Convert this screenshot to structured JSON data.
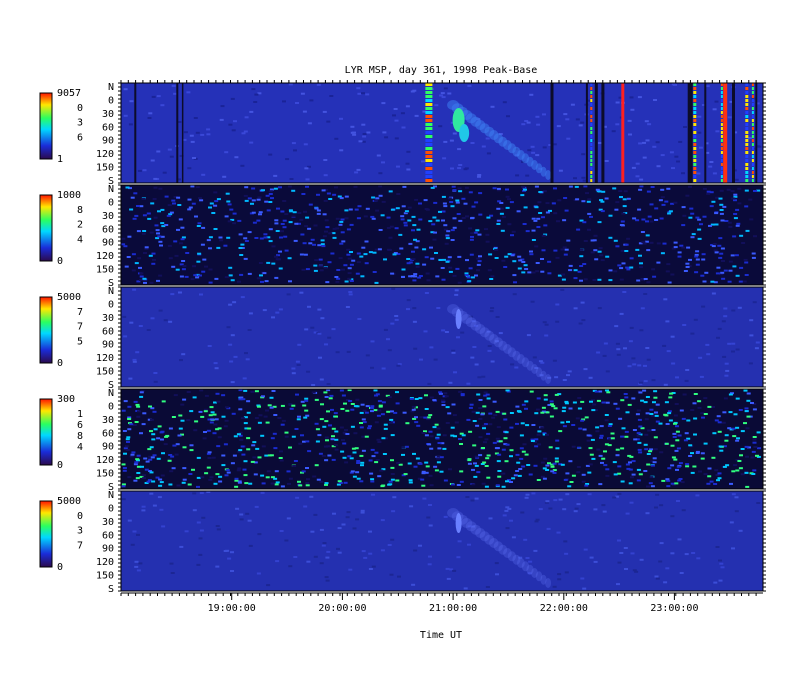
{
  "chart_data": {
    "type": "heatmap",
    "title": "LYR MSP, day 361, 1998 Peak-Base",
    "xlabel": "Time UT",
    "x_ticks": [
      "19:00:00",
      "20:00:00",
      "21:00:00",
      "22:00:00",
      "23:00:00"
    ],
    "x_range_hours": [
      18.0,
      23.8
    ],
    "y_tick_labels": [
      "N",
      "0",
      "30",
      "60",
      "90",
      "120",
      "150",
      "S"
    ],
    "panels": [
      {
        "colorbar_max": "9057",
        "colorbar_labels": [
          "0",
          "3",
          "6"
        ],
        "colorbar_min": "1"
      },
      {
        "colorbar_max": "1000",
        "colorbar_labels": [
          "8",
          "2",
          "4"
        ],
        "colorbar_min": "0"
      },
      {
        "colorbar_max": "5000",
        "colorbar_labels": [
          "7",
          "7",
          "5"
        ],
        "colorbar_min": "0"
      },
      {
        "colorbar_max": "300",
        "colorbar_labels": [
          "1",
          "6",
          "8",
          "4"
        ],
        "colorbar_min": "0"
      },
      {
        "colorbar_max": "5000",
        "colorbar_labels": [
          "0",
          "3",
          "7"
        ],
        "colorbar_min": "0"
      }
    ],
    "colormap": [
      "#2b0a4d",
      "#1a2cd8",
      "#00d8ff",
      "#2aff60",
      "#ffe800",
      "#ff1400"
    ],
    "grid": false
  }
}
